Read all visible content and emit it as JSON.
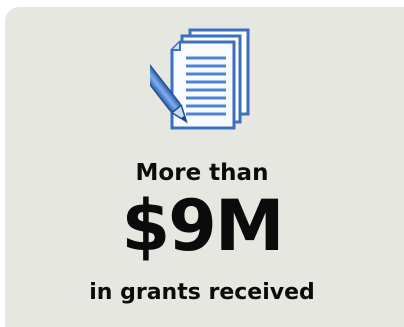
{
  "stat": {
    "prefix": "More than",
    "value": "$9M",
    "suffix": "in grants received"
  },
  "icon": {
    "name": "document-pen-icon"
  },
  "colors": {
    "card_background": "#e7e7e2",
    "text": "#0b0b0b",
    "icon_blue": "#5b8fd6"
  }
}
